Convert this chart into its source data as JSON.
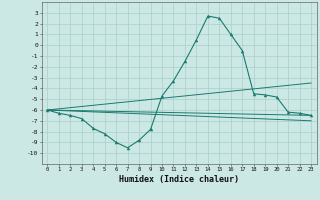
{
  "title": "",
  "xlabel": "Humidex (Indice chaleur)",
  "x_values": [
    0,
    1,
    2,
    3,
    4,
    5,
    6,
    7,
    8,
    9,
    10,
    11,
    12,
    13,
    14,
    15,
    16,
    17,
    18,
    19,
    20,
    21,
    22,
    23
  ],
  "line1": [
    -6.0,
    -6.3,
    -6.5,
    -6.8,
    -7.7,
    -8.2,
    -9.0,
    -9.5,
    -8.8,
    -7.8,
    -4.7,
    -3.3,
    -1.5,
    0.5,
    2.7,
    2.5,
    1.0,
    -0.5,
    -4.5,
    -4.6,
    -4.8,
    -6.2,
    -6.3,
    -6.5
  ],
  "line3_x": [
    0,
    23
  ],
  "line3_y": [
    -6.0,
    -3.5
  ],
  "line4_x": [
    0,
    23
  ],
  "line4_y": [
    -6.0,
    -6.5
  ],
  "line5_x": [
    0,
    23
  ],
  "line5_y": [
    -6.0,
    -7.0
  ],
  "color": "#1a7a6e",
  "bg_color": "#cce8e5",
  "grid_color": "#aacfcc",
  "ylim": [
    -11,
    4
  ],
  "xlim": [
    -0.5,
    23.5
  ],
  "yticks": [
    3,
    2,
    1,
    0,
    -1,
    -2,
    -3,
    -4,
    -5,
    -6,
    -7,
    -8,
    -9,
    -10
  ],
  "xticks": [
    0,
    1,
    2,
    3,
    4,
    5,
    6,
    7,
    8,
    9,
    10,
    11,
    12,
    13,
    14,
    15,
    16,
    17,
    18,
    19,
    20,
    21,
    22,
    23
  ]
}
